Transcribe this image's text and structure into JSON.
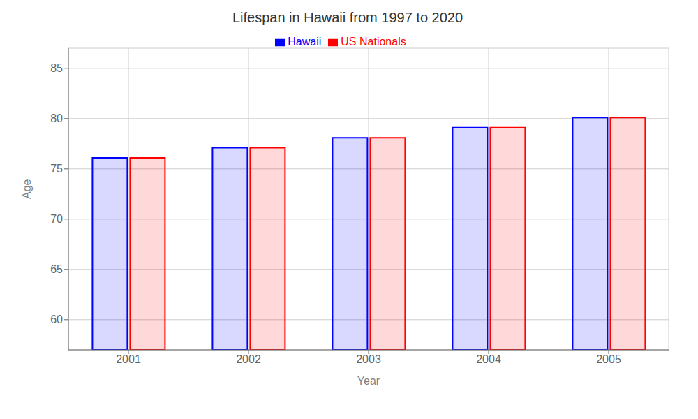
{
  "chart_data": {
    "type": "bar",
    "title": "Lifespan in Hawaii from 1997 to 2020",
    "x_label": "Year",
    "y_label": "Age",
    "categories": [
      "2001",
      "2002",
      "2003",
      "2004",
      "2005"
    ],
    "series": [
      {
        "name": "Hawaii",
        "color": "#0000ff",
        "values": [
          76.1,
          77.1,
          78.1,
          79.1,
          80.1
        ]
      },
      {
        "name": "US Nationals",
        "color": "#ff0000",
        "values": [
          76.1,
          77.1,
          78.1,
          79.1,
          80.1
        ]
      }
    ],
    "ylim": [
      57,
      87
    ],
    "yticks": [
      60,
      65,
      70,
      75,
      80,
      85
    ],
    "grid": true,
    "legend": "top"
  }
}
